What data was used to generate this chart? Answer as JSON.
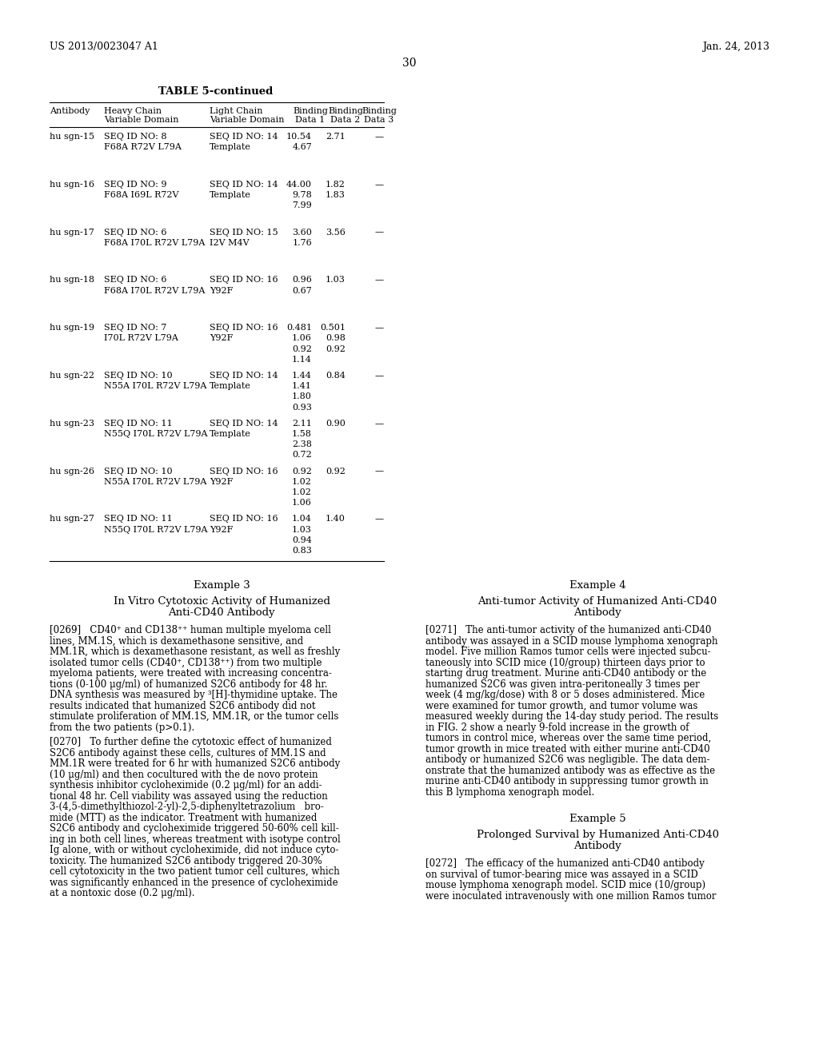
{
  "header_left": "US 2013/0023047 A1",
  "header_right": "Jan. 24, 2013",
  "page_number": "30",
  "table_title": "TABLE 5-continued",
  "table_rows": [
    {
      "antibody": "hu sgn-15",
      "hc1": "SEQ ID NO: 8",
      "hc2": "F68A R72V L79A",
      "lc1": "SEQ ID NO: 14",
      "lc2": "Template",
      "bd1": [
        "10.54",
        "4.67",
        "",
        ""
      ],
      "bd2": [
        "2.71",
        "",
        "",
        ""
      ],
      "bd3": [
        "—",
        "",
        "",
        ""
      ]
    },
    {
      "antibody": "hu sgn-16",
      "hc1": "SEQ ID NO: 9",
      "hc2": "F68A I69L R72V",
      "lc1": "SEQ ID NO: 14",
      "lc2": "Template",
      "bd1": [
        "44.00",
        "9.78",
        "7.99",
        ""
      ],
      "bd2": [
        "1.82",
        "1.83",
        "",
        ""
      ],
      "bd3": [
        "—",
        "",
        "",
        ""
      ]
    },
    {
      "antibody": "hu sgn-17",
      "hc1": "SEQ ID NO: 6",
      "hc2": "F68A I70L R72V L79A",
      "lc1": "SEQ ID NO: 15",
      "lc2": "I2V M4V",
      "bd1": [
        "3.60",
        "1.76",
        "",
        ""
      ],
      "bd2": [
        "3.56",
        "",
        "",
        ""
      ],
      "bd3": [
        "—",
        "",
        "",
        ""
      ]
    },
    {
      "antibody": "hu sgn-18",
      "hc1": "SEQ ID NO: 6",
      "hc2": "F68A I70L R72V L79A",
      "lc1": "SEQ ID NO: 16",
      "lc2": "Y92F",
      "bd1": [
        "0.96",
        "0.67",
        "",
        ""
      ],
      "bd2": [
        "1.03",
        "",
        "",
        ""
      ],
      "bd3": [
        "—",
        "",
        "",
        ""
      ]
    },
    {
      "antibody": "hu sgn-19",
      "hc1": "SEQ ID NO: 7",
      "hc2": "I70L R72V L79A",
      "lc1": "SEQ ID NO: 16",
      "lc2": "Y92F",
      "bd1": [
        "0.481",
        "1.06",
        "0.92",
        "1.14"
      ],
      "bd2": [
        "0.501",
        "0.98",
        "0.92",
        ""
      ],
      "bd3": [
        "—",
        "",
        "",
        ""
      ]
    },
    {
      "antibody": "hu sgn-22",
      "hc1": "SEQ ID NO: 10",
      "hc2": "N55A I70L R72V L79A",
      "lc1": "SEQ ID NO: 14",
      "lc2": "Template",
      "bd1": [
        "1.44",
        "1.41",
        "1.80",
        "0.93"
      ],
      "bd2": [
        "0.84",
        "",
        "",
        ""
      ],
      "bd3": [
        "—",
        "",
        "",
        ""
      ]
    },
    {
      "antibody": "hu sgn-23",
      "hc1": "SEQ ID NO: 11",
      "hc2": "N55Q I70L R72V L79A",
      "lc1": "SEQ ID NO: 14",
      "lc2": "Template",
      "bd1": [
        "2.11",
        "1.58",
        "2.38",
        "0.72"
      ],
      "bd2": [
        "0.90",
        "",
        "",
        ""
      ],
      "bd3": [
        "—",
        "",
        "",
        ""
      ]
    },
    {
      "antibody": "hu sgn-26",
      "hc1": "SEQ ID NO: 10",
      "hc2": "N55A I70L R72V L79A",
      "lc1": "SEQ ID NO: 16",
      "lc2": "Y92F",
      "bd1": [
        "0.92",
        "1.02",
        "1.02",
        "1.06"
      ],
      "bd2": [
        "0.92",
        "",
        "",
        ""
      ],
      "bd3": [
        "—",
        "",
        "",
        ""
      ]
    },
    {
      "antibody": "hu sgn-27",
      "hc1": "SEQ ID NO: 11",
      "hc2": "N55Q I70L R72V L79A",
      "lc1": "SEQ ID NO: 16",
      "lc2": "Y92F",
      "bd1": [
        "1.04",
        "1.03",
        "0.94",
        "0.83"
      ],
      "bd2": [
        "1.40",
        "",
        "",
        ""
      ],
      "bd3": [
        "—",
        "",
        "",
        ""
      ]
    }
  ],
  "example3_title": "Example 3",
  "example3_subtitle1": "In Vitro Cytotoxic Activity of Humanized",
  "example3_subtitle2": "Anti-CD40 Antibody",
  "para_0269_lines": [
    "[0269]   CD40⁺ and CD138⁺⁺ human multiple myeloma cell",
    "lines, MM.1S, which is dexamethasone sensitive, and",
    "MM.1R, which is dexamethasone resistant, as well as freshly",
    "isolated tumor cells (CD40⁺, CD138⁺⁺) from two multiple",
    "myeloma patients, were treated with increasing concentra-",
    "tions (0-100 μg/ml) of humanized S2C6 antibody for 48 hr.",
    "DNA synthesis was measured by ³[H]-thymidine uptake. The",
    "results indicated that humanized S2C6 antibody did not",
    "stimulate proliferation of MM.1S, MM.1R, or the tumor cells",
    "from the two patients (p>0.1)."
  ],
  "para_0270_lines": [
    "[0270]   To further define the cytotoxic effect of humanized",
    "S2C6 antibody against these cells, cultures of MM.1S and",
    "MM.1R were treated for 6 hr with humanized S2C6 antibody",
    "(10 μg/ml) and then cocultured with the de novo protein",
    "synthesis inhibitor cycloheximide (0.2 μg/ml) for an addi-",
    "tional 48 hr. Cell viability was assayed using the reduction",
    "3-(4,5-dimethylthiozol-2-yl)-2,5-diphenyltetrazolium   bro-",
    "mide (MTT) as the indicator. Treatment with humanized",
    "S2C6 antibody and cycloheximide triggered 50-60% cell kill-",
    "ing in both cell lines, whereas treatment with isotype control",
    "Ig alone, with or without cycloheximide, did not induce cyto-",
    "toxicity. The humanized S2C6 antibody triggered 20-30%",
    "cell cytotoxicity in the two patient tumor cell cultures, which",
    "was significantly enhanced in the presence of cycloheximide",
    "at a nontoxic dose (0.2 μg/ml)."
  ],
  "example4_title": "Example 4",
  "example4_subtitle1": "Anti-tumor Activity of Humanized Anti-CD40",
  "example4_subtitle2": "Antibody",
  "para_0271_lines": [
    "[0271]   The anti-tumor activity of the humanized anti-CD40",
    "antibody was assayed in a SCID mouse lymphoma xenograph",
    "model. Five million Ramos tumor cells were injected subcu-",
    "taneously into SCID mice (10/group) thirteen days prior to",
    "starting drug treatment. Murine anti-CD40 antibody or the",
    "humanized S2C6 was given intra-peritoneally 3 times per",
    "week (4 mg/kg/dose) with 8 or 5 doses administered. Mice",
    "were examined for tumor growth, and tumor volume was",
    "measured weekly during the 14-day study period. The results",
    "in FIG. 2 show a nearly 9-fold increase in the growth of",
    "tumors in control mice, whereas over the same time period,",
    "tumor growth in mice treated with either murine anti-CD40",
    "antibody or humanized S2C6 was negligible. The data dem-",
    "onstrate that the humanized antibody was as effective as the",
    "murine anti-CD40 antibody in suppressing tumor growth in",
    "this B lymphoma xenograph model."
  ],
  "example5_title": "Example 5",
  "example5_subtitle1": "Prolonged Survival by Humanized Anti-CD40",
  "example5_subtitle2": "Antibody",
  "para_0272_lines": [
    "[0272]   The efficacy of the humanized anti-CD40 antibody",
    "on survival of tumor-bearing mice was assayed in a SCID",
    "mouse lymphoma xenograph model. SCID mice (10/group)",
    "were inoculated intravenously with one million Ramos tumor"
  ]
}
